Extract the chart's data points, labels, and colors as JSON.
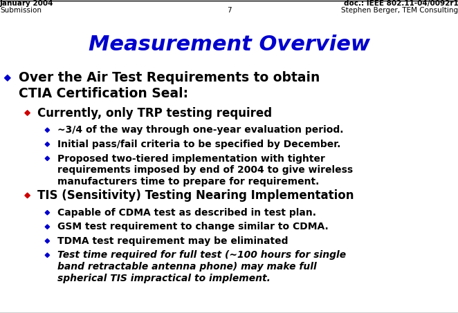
{
  "slide_bg": "#ffffff",
  "top_left": "January 2004",
  "top_right": "doc.: IEEE 802.11-04/0092r1",
  "title": "Measurement Overview",
  "title_color": "#0000cc",
  "bottom_left": "Submission",
  "bottom_center": "7",
  "bottom_right": "Stephen Berger, TEM Consulting",
  "content": [
    {
      "level": 0,
      "bullet_color": "#0000cc",
      "lines": [
        "Over the Air Test Requirements to obtain",
        "CTIA Certification Seal:"
      ],
      "bold": true,
      "italic": false,
      "fontsize": 13.5
    },
    {
      "level": 1,
      "bullet_color": "#cc0000",
      "lines": [
        "Currently, only TRP testing required"
      ],
      "bold": true,
      "italic": false,
      "fontsize": 12
    },
    {
      "level": 2,
      "bullet_color": "#0000cc",
      "lines": [
        "~3/4 of the way through one-year evaluation period."
      ],
      "bold": true,
      "italic": false,
      "fontsize": 10
    },
    {
      "level": 2,
      "bullet_color": "#0000cc",
      "lines": [
        "Initial pass/fail criteria to be specified by December."
      ],
      "bold": true,
      "italic": false,
      "fontsize": 10
    },
    {
      "level": 2,
      "bullet_color": "#0000cc",
      "lines": [
        "Proposed two-tiered implementation with tighter",
        "requirements imposed by end of 2004 to give wireless",
        "manufacturers time to prepare for requirement."
      ],
      "bold": true,
      "italic": false,
      "fontsize": 10
    },
    {
      "level": 1,
      "bullet_color": "#cc0000",
      "lines": [
        "TIS (Sensitivity) Testing Nearing Implementation"
      ],
      "bold": true,
      "italic": false,
      "fontsize": 12
    },
    {
      "level": 2,
      "bullet_color": "#0000cc",
      "lines": [
        "Capable of CDMA test as described in test plan."
      ],
      "bold": true,
      "italic": false,
      "fontsize": 10
    },
    {
      "level": 2,
      "bullet_color": "#0000cc",
      "lines": [
        "GSM test requirement to change similar to CDMA."
      ],
      "bold": true,
      "italic": false,
      "fontsize": 10
    },
    {
      "level": 2,
      "bullet_color": "#0000cc",
      "lines": [
        "TDMA test requirement may be eliminated"
      ],
      "bold": true,
      "italic": false,
      "fontsize": 10
    },
    {
      "level": 2,
      "bullet_color": "#0000cc",
      "lines": [
        "Test time required for full test (~100 hours for single",
        "band retractable antenna phone) may make full",
        "spherical TIS impractical to implement."
      ],
      "bold": true,
      "italic": true,
      "fontsize": 10
    }
  ]
}
